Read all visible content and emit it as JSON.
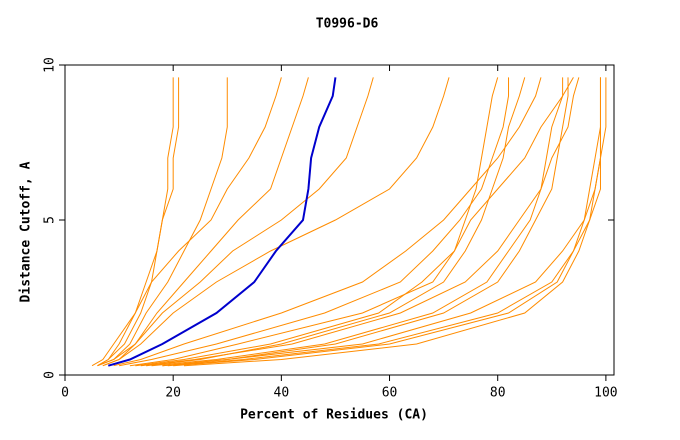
{
  "chart_data": {
    "type": "line",
    "title": "T0996-D6",
    "x_label": "Percent of Residues (CA)",
    "y_label": "Distance Cutoff, A",
    "xlim": [
      0,
      101.5
    ],
    "ylim": [
      0,
      10
    ],
    "xticks": [
      0,
      20,
      40,
      60,
      80,
      100
    ],
    "yticks": [
      0,
      5,
      10
    ],
    "series": [
      {
        "color": "#ff8c00",
        "x": [
          6,
          8,
          10,
          13,
          15,
          17,
          18,
          20,
          20,
          21,
          21,
          21
        ],
        "values": [
          0.3,
          0.5,
          1,
          2,
          3,
          4,
          5,
          6,
          7,
          8,
          9,
          9.6
        ]
      },
      {
        "color": "#ff8c00",
        "x": [
          6,
          9,
          12,
          15,
          19,
          22,
          25,
          27,
          29,
          30,
          30,
          30
        ],
        "values": [
          0.3,
          0.5,
          1,
          2,
          3,
          4,
          5,
          6,
          7,
          8,
          9,
          9.6
        ]
      },
      {
        "color": "#ff8c00",
        "x": [
          5,
          7,
          9,
          13,
          16,
          21,
          27,
          30,
          34,
          37,
          39,
          40
        ],
        "values": [
          0.3,
          0.5,
          1,
          2,
          3,
          4,
          5,
          6,
          7,
          8,
          9,
          9.6
        ]
      },
      {
        "color": "#ff8c00",
        "x": [
          7,
          10,
          13,
          17,
          22,
          27,
          32,
          38,
          40,
          42,
          44,
          45
        ],
        "values": [
          0.3,
          0.5,
          1,
          2,
          3,
          4,
          5,
          6,
          7,
          8,
          9,
          9.6
        ]
      },
      {
        "color": "#ff8c00",
        "x": [
          6,
          8,
          11,
          14,
          16,
          17,
          18,
          19,
          19,
          20,
          20,
          20
        ],
        "values": [
          0.3,
          0.5,
          1,
          2,
          3,
          4,
          5,
          6,
          7,
          8,
          9,
          9.6
        ]
      },
      {
        "color": "#ff8c00",
        "x": [
          6,
          9,
          13,
          18,
          25,
          31,
          40,
          47,
          52,
          54,
          56,
          57
        ],
        "values": [
          0.3,
          0.5,
          1,
          2,
          3,
          4,
          5,
          6,
          7,
          8,
          9,
          9.6
        ]
      },
      {
        "color": "#ff8c00",
        "x": [
          7,
          10,
          14,
          20,
          28,
          38,
          50,
          60,
          65,
          68,
          70,
          71
        ],
        "values": [
          0.3,
          0.5,
          1,
          2,
          3,
          4,
          5,
          6,
          7,
          8,
          9,
          9.6
        ]
      },
      {
        "color": "#ff8c00",
        "x": [
          12,
          20,
          32,
          55,
          68,
          72,
          74,
          76,
          77,
          78,
          79,
          80
        ],
        "values": [
          0.3,
          0.5,
          1,
          2,
          3,
          4,
          5,
          6,
          7,
          8,
          9,
          9.6
        ]
      },
      {
        "color": "#ff8c00",
        "x": [
          15,
          25,
          40,
          60,
          70,
          74,
          77,
          79,
          81,
          82,
          84,
          85
        ],
        "values": [
          0.3,
          0.5,
          1,
          2,
          3,
          4,
          5,
          6,
          7,
          8,
          9,
          9.6
        ]
      },
      {
        "color": "#ff8c00",
        "x": [
          18,
          30,
          50,
          70,
          80,
          84,
          87,
          90,
          91,
          92,
          93,
          93
        ],
        "values": [
          0.3,
          0.5,
          1,
          2,
          3,
          4,
          5,
          6,
          7,
          8,
          9,
          9.6
        ]
      },
      {
        "color": "#ff8c00",
        "x": [
          16,
          28,
          48,
          68,
          78,
          82,
          86,
          88,
          89,
          90,
          92,
          92
        ],
        "values": [
          0.3,
          0.5,
          1,
          2,
          3,
          4,
          5,
          6,
          7,
          8,
          9,
          9.6
        ]
      },
      {
        "color": "#ff8c00",
        "x": [
          20,
          35,
          60,
          82,
          91,
          94,
          96,
          97,
          98,
          99,
          99,
          99
        ],
        "values": [
          0.3,
          0.5,
          1,
          2,
          3,
          4,
          5,
          6,
          7,
          8,
          9,
          9.6
        ]
      },
      {
        "color": "#ff8c00",
        "x": [
          22,
          40,
          65,
          85,
          92,
          95,
          97,
          98,
          99,
          99,
          99,
          99
        ],
        "values": [
          0.3,
          0.5,
          1,
          2,
          3,
          4,
          5,
          6,
          7,
          8,
          9,
          9.6
        ]
      },
      {
        "color": "#ff8c00",
        "x": [
          14,
          24,
          42,
          62,
          74,
          80,
          84,
          88,
          90,
          93,
          94,
          95
        ],
        "values": [
          0.3,
          0.5,
          1,
          2,
          3,
          4,
          5,
          6,
          7,
          8,
          9,
          9.6
        ]
      },
      {
        "color": "#ff8c00",
        "x": [
          18,
          30,
          55,
          75,
          87,
          92,
          96,
          98,
          99,
          100,
          100,
          100
        ],
        "values": [
          0.3,
          0.5,
          1,
          2,
          3,
          4,
          5,
          6,
          7,
          8,
          9,
          9.6
        ]
      },
      {
        "color": "#ff8c00",
        "x": [
          13,
          22,
          38,
          58,
          66,
          72,
          75,
          80,
          85,
          88,
          92,
          94
        ],
        "values": [
          0.3,
          0.5,
          1,
          2,
          3,
          4,
          5,
          6,
          7,
          8,
          9,
          9.6
        ]
      },
      {
        "color": "#ff8c00",
        "x": [
          10,
          16,
          28,
          48,
          62,
          68,
          73,
          77,
          79,
          81,
          82,
          82
        ],
        "values": [
          0.3,
          0.5,
          1,
          2,
          3,
          4,
          5,
          6,
          7,
          8,
          9,
          9.6
        ]
      },
      {
        "color": "#ff8c00",
        "x": [
          19,
          33,
          58,
          80,
          90,
          94,
          97,
          99,
          99,
          99,
          99,
          99
        ],
        "values": [
          0.3,
          0.5,
          1,
          2,
          3,
          4,
          5,
          6,
          7,
          8,
          9,
          9.6
        ]
      },
      {
        "color": "#ff8c00",
        "x": [
          9,
          14,
          22,
          40,
          55,
          63,
          70,
          75,
          80,
          84,
          87,
          88
        ],
        "values": [
          0.3,
          0.5,
          1,
          2,
          3,
          4,
          5,
          6,
          7,
          8,
          9,
          9.6
        ]
      },
      {
        "color": "#0000cd",
        "x": [
          8,
          12,
          18,
          28,
          35,
          39,
          44,
          45,
          45.5,
          47,
          49.5,
          50
        ],
        "values": [
          0.3,
          0.5,
          1,
          2,
          3,
          4,
          5,
          6,
          7,
          8,
          9,
          9.6
        ]
      }
    ]
  }
}
